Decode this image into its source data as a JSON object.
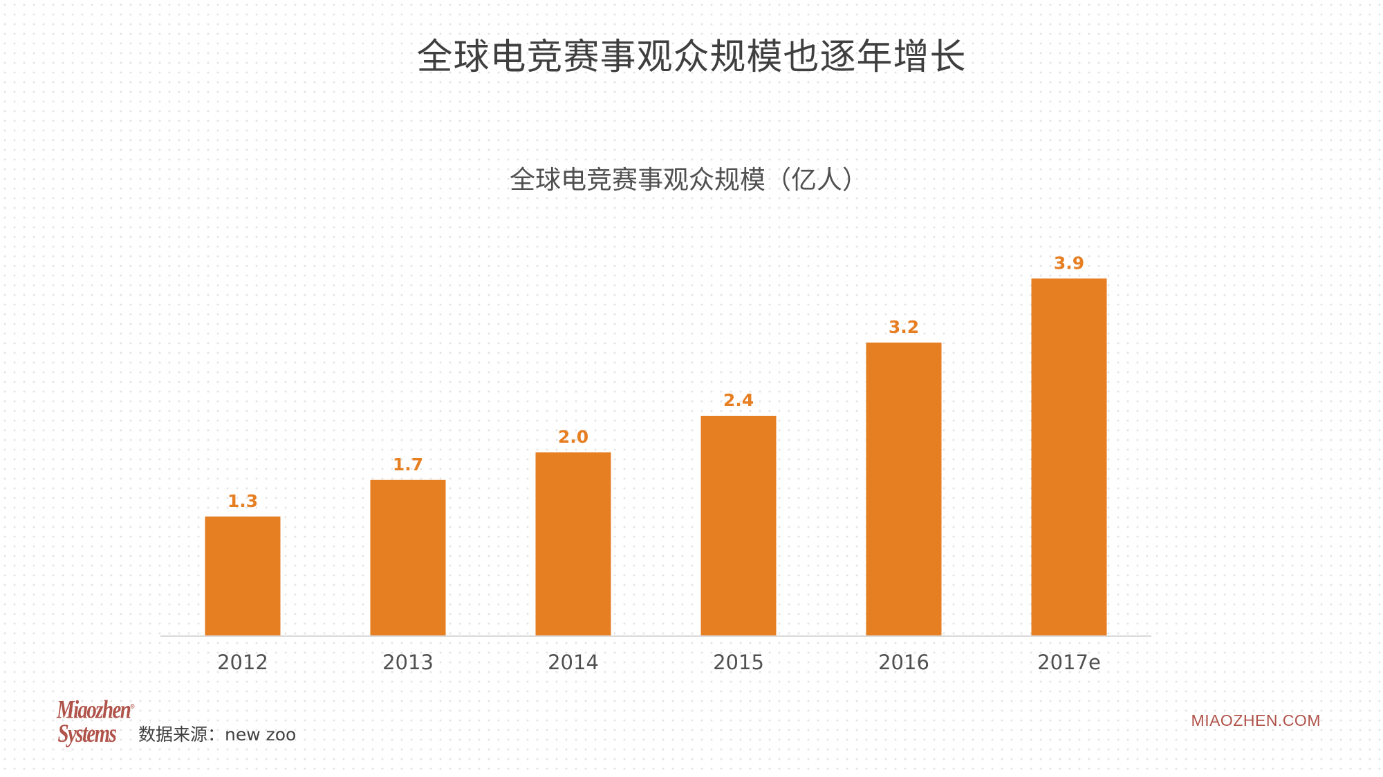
{
  "header": {
    "title": "全球电竞赛事观众规模也逐年增长"
  },
  "chart_data": {
    "type": "bar",
    "title": "全球电竞赛事观众规模（亿人）",
    "categories": [
      "2012",
      "2013",
      "2014",
      "2015",
      "2016",
      "2017e"
    ],
    "values": [
      1.3,
      1.7,
      2.0,
      2.4,
      3.2,
      3.9
    ],
    "value_labels": [
      "1.3",
      "1.7",
      "2.0",
      "2.4",
      "3.2",
      "3.9"
    ],
    "xlabel": "",
    "ylabel": "",
    "ylim": [
      0,
      4.0
    ],
    "grid": false,
    "legend": "none",
    "bar_color": "#e67e22",
    "label_color": "#e67e22"
  },
  "footer": {
    "logo_line1": "Miaozhen",
    "logo_line2": "Systems",
    "logo_reg": "®",
    "source": "数据来源：new zoo",
    "website": "MIAOZHEN.COM"
  },
  "colors": {
    "accent": "#e67e22",
    "brand": "#b0534a",
    "text": "#404040",
    "axis": "#d9d9d9"
  }
}
